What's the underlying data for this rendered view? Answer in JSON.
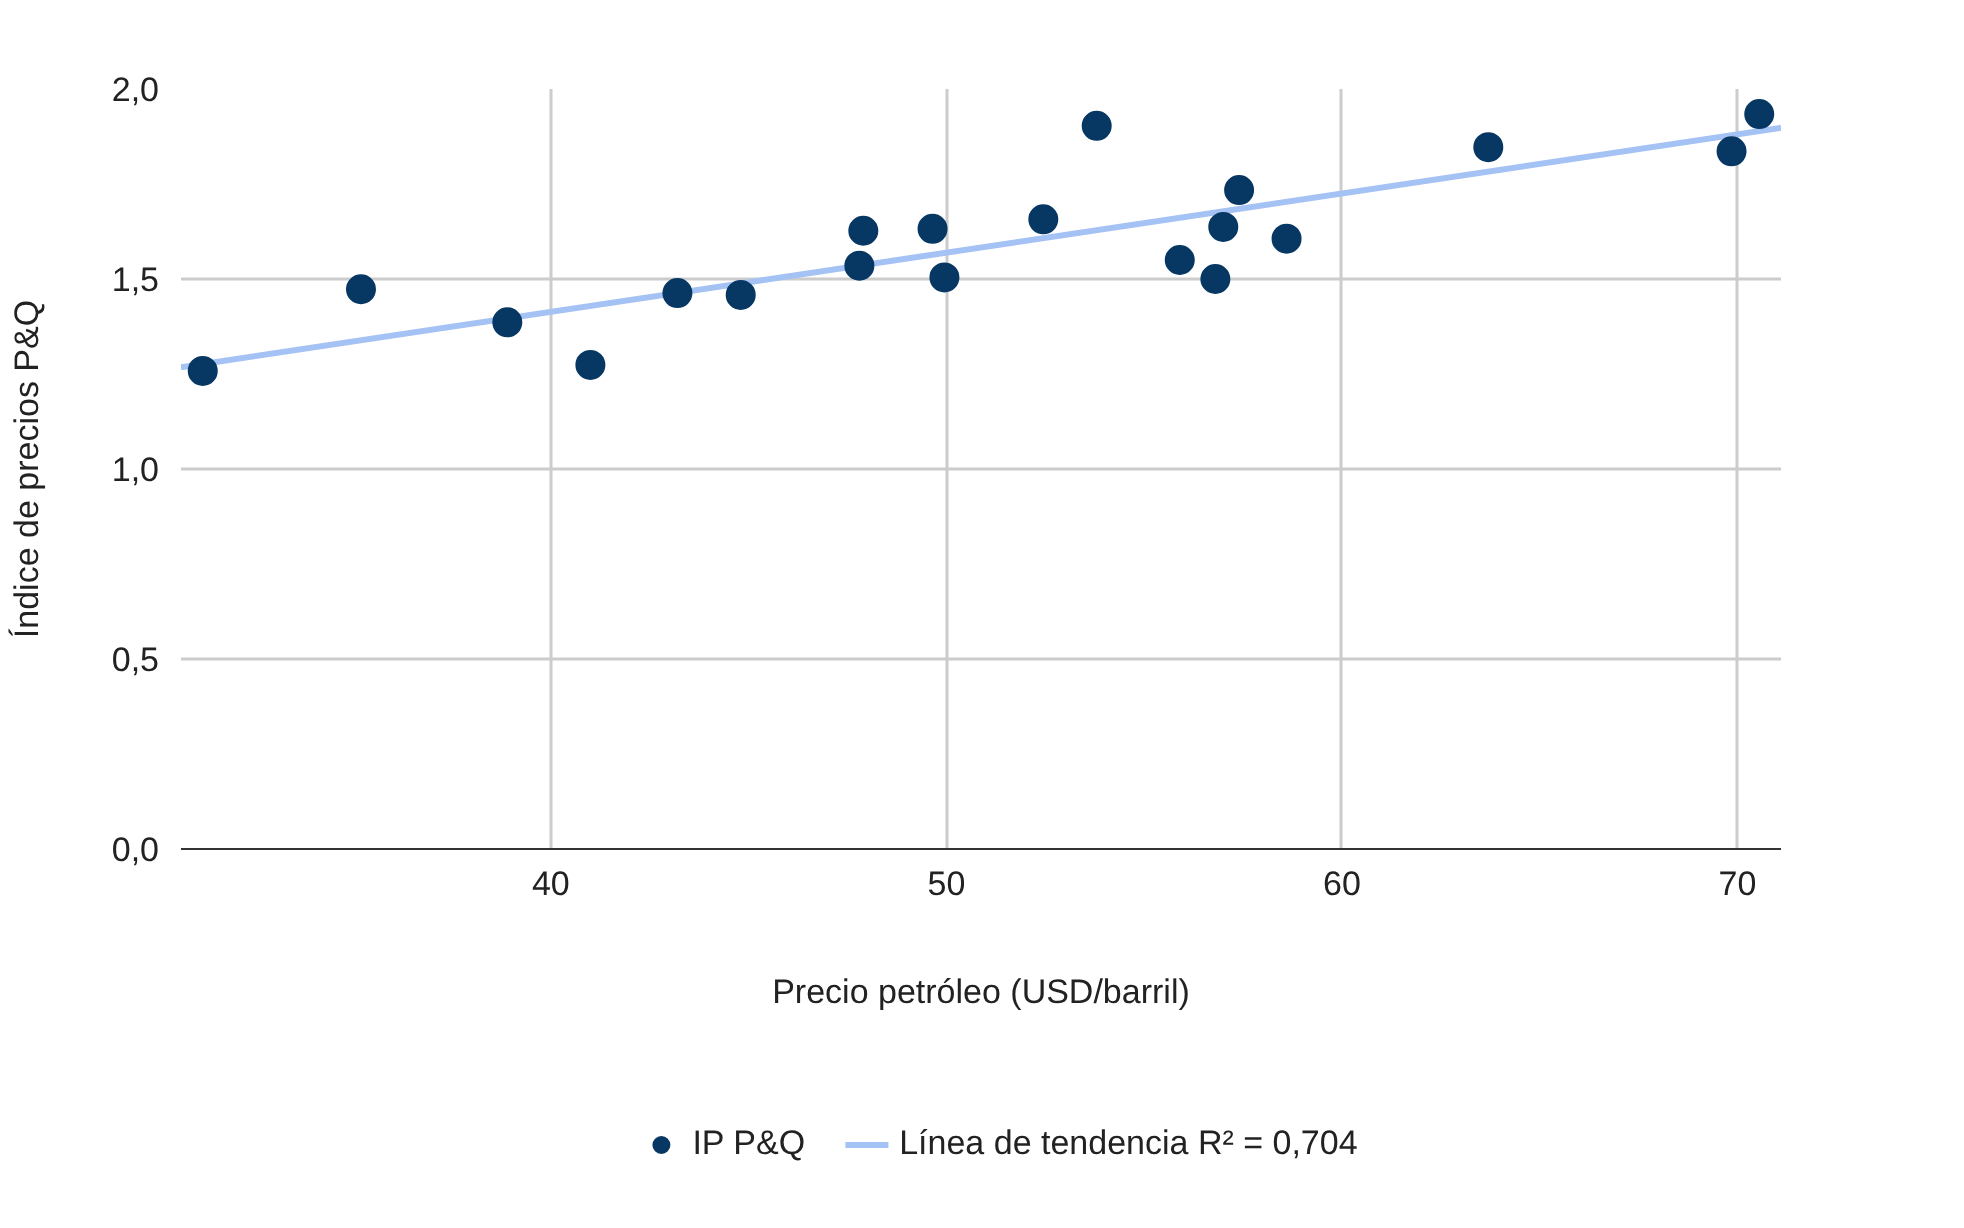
{
  "chart_data": {
    "type": "scatter",
    "xlabel": "Precio petróleo (USD/barril)",
    "ylabel": "Índice de precios P&Q",
    "xlim": [
      30.65,
      71.1
    ],
    "ylim": [
      0,
      2.0
    ],
    "xticks": [
      40,
      50,
      60,
      70
    ],
    "yticks": [
      {
        "value": 0,
        "label": "0,0"
      },
      {
        "value": 0.5,
        "label": "0,5"
      },
      {
        "value": 1,
        "label": "1,0"
      },
      {
        "value": 1.5,
        "label": "1,5"
      },
      {
        "value": 2,
        "label": "2,0"
      }
    ],
    "grid": true,
    "legend": "bottom",
    "series": [
      {
        "name": "IP P&Q",
        "color": "#073763",
        "marker": "circle",
        "x": [
          31.2,
          35.2,
          38.9,
          41.0,
          43.2,
          44.8,
          47.8,
          47.9,
          49.65,
          49.95,
          52.45,
          53.8,
          55.9,
          56.8,
          57.0,
          57.4,
          58.6,
          63.7,
          69.85,
          70.55
        ],
        "values": [
          1.258,
          1.473,
          1.386,
          1.274,
          1.463,
          1.458,
          1.535,
          1.627,
          1.632,
          1.504,
          1.657,
          1.903,
          1.55,
          1.5,
          1.637,
          1.734,
          1.606,
          1.847,
          1.836,
          1.934
        ]
      },
      {
        "name": "Línea de tendencia R² = 0,704",
        "color": "#a4c2f4",
        "type": "line",
        "line_style": "solid",
        "x": [
          30.65,
          71.1
        ],
        "values": [
          1.268,
          1.898
        ]
      }
    ]
  }
}
